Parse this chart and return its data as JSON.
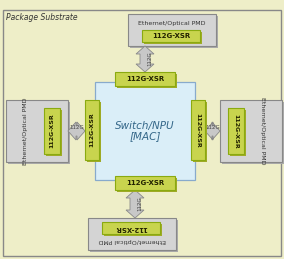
{
  "bg_outer": "#eeeec8",
  "bg_center": "#daeef8",
  "green_fill": "#c8d44e",
  "green_dark": "#8aaa10",
  "green_shadow": "#a0aa28",
  "gray_fill": "#d4d4d4",
  "gray_dark": "#888888",
  "gray_shadow": "#aaaaaa",
  "arrow_fill": "#c8c8c8",
  "arrow_edge": "#888888",
  "outer_border": "#888888",
  "center_border": "#88aacc",
  "title": "Package Substrate",
  "center_line1": "Switch/NPU",
  "center_line2": "[MAC]",
  "label_xsr": "112G-XSR",
  "label_112xsr": "112-XSR",
  "label_112g": "112G",
  "label_pmd": "Ethernet/Optical PMD"
}
